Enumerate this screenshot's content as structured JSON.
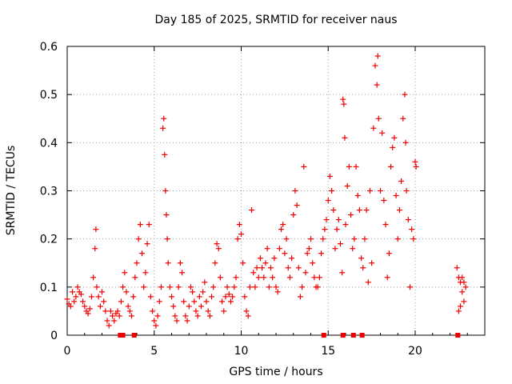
{
  "chart_data": {
    "type": "scatter",
    "title": "Day 185 of 2025, SRMTID for receiver naus",
    "xlabel": "GPS time / hours",
    "ylabel": "SRMTID / TECUs",
    "xlim": [
      0,
      24
    ],
    "ylim": [
      0,
      0.6
    ],
    "xticks": [
      0,
      5,
      10,
      15,
      20
    ],
    "yticks": [
      0,
      0.1,
      0.2,
      0.3,
      0.4,
      0.5,
      0.6
    ],
    "grid": true,
    "marker": "+",
    "color": "#ee0000",
    "series": [
      {
        "name": "SRMTID",
        "points": [
          [
            0.0,
            0.075
          ],
          [
            0.1,
            0.065
          ],
          [
            0.2,
            0.06
          ],
          [
            0.3,
            0.09
          ],
          [
            0.4,
            0.07
          ],
          [
            0.5,
            0.08
          ],
          [
            0.6,
            0.1
          ],
          [
            0.7,
            0.09
          ],
          [
            0.8,
            0.085
          ],
          [
            0.9,
            0.07
          ],
          [
            1.0,
            0.06
          ],
          [
            1.1,
            0.05
          ],
          [
            1.2,
            0.045
          ],
          [
            1.3,
            0.055
          ],
          [
            1.4,
            0.08
          ],
          [
            1.5,
            0.12
          ],
          [
            1.6,
            0.18
          ],
          [
            1.65,
            0.22
          ],
          [
            1.7,
            0.1
          ],
          [
            1.8,
            0.08
          ],
          [
            1.9,
            0.06
          ],
          [
            2.0,
            0.09
          ],
          [
            2.1,
            0.07
          ],
          [
            2.2,
            0.05
          ],
          [
            2.3,
            0.03
          ],
          [
            2.4,
            0.02
          ],
          [
            2.5,
            0.05
          ],
          [
            2.6,
            0.04
          ],
          [
            2.7,
            0.03
          ],
          [
            2.8,
            0.045
          ],
          [
            2.9,
            0.05
          ],
          [
            3.0,
            0.04
          ],
          [
            3.1,
            0.07
          ],
          [
            3.2,
            0.1
          ],
          [
            3.3,
            0.13
          ],
          [
            3.4,
            0.09
          ],
          [
            3.5,
            0.06
          ],
          [
            3.6,
            0.05
          ],
          [
            3.7,
            0.04
          ],
          [
            3.8,
            0.08
          ],
          [
            3.9,
            0.12
          ],
          [
            4.0,
            0.15
          ],
          [
            4.1,
            0.2
          ],
          [
            4.2,
            0.23
          ],
          [
            4.3,
            0.17
          ],
          [
            4.4,
            0.1
          ],
          [
            4.5,
            0.13
          ],
          [
            4.6,
            0.19
          ],
          [
            4.7,
            0.23
          ],
          [
            4.8,
            0.08
          ],
          [
            4.9,
            0.05
          ],
          [
            5.0,
            0.03
          ],
          [
            5.1,
            0.02
          ],
          [
            5.2,
            0.04
          ],
          [
            5.3,
            0.07
          ],
          [
            5.4,
            0.1
          ],
          [
            5.5,
            0.43
          ],
          [
            5.55,
            0.45
          ],
          [
            5.6,
            0.375
          ],
          [
            5.65,
            0.3
          ],
          [
            5.7,
            0.25
          ],
          [
            5.75,
            0.2
          ],
          [
            5.8,
            0.15
          ],
          [
            5.9,
            0.1
          ],
          [
            6.0,
            0.08
          ],
          [
            6.1,
            0.06
          ],
          [
            6.2,
            0.04
          ],
          [
            6.3,
            0.03
          ],
          [
            6.4,
            0.1
          ],
          [
            6.5,
            0.15
          ],
          [
            6.6,
            0.13
          ],
          [
            6.7,
            0.07
          ],
          [
            6.8,
            0.04
          ],
          [
            6.9,
            0.03
          ],
          [
            7.0,
            0.06
          ],
          [
            7.1,
            0.1
          ],
          [
            7.2,
            0.09
          ],
          [
            7.3,
            0.07
          ],
          [
            7.4,
            0.05
          ],
          [
            7.5,
            0.04
          ],
          [
            7.6,
            0.08
          ],
          [
            7.7,
            0.06
          ],
          [
            7.8,
            0.09
          ],
          [
            7.9,
            0.11
          ],
          [
            8.0,
            0.07
          ],
          [
            8.1,
            0.05
          ],
          [
            8.2,
            0.04
          ],
          [
            8.3,
            0.08
          ],
          [
            8.4,
            0.1
          ],
          [
            8.5,
            0.15
          ],
          [
            8.6,
            0.19
          ],
          [
            8.7,
            0.18
          ],
          [
            8.8,
            0.12
          ],
          [
            8.9,
            0.07
          ],
          [
            9.0,
            0.05
          ],
          [
            9.1,
            0.08
          ],
          [
            9.2,
            0.1
          ],
          [
            9.3,
            0.085
          ],
          [
            9.4,
            0.07
          ],
          [
            9.5,
            0.08
          ],
          [
            9.6,
            0.1
          ],
          [
            9.7,
            0.12
          ],
          [
            9.8,
            0.2
          ],
          [
            9.9,
            0.23
          ],
          [
            10.0,
            0.21
          ],
          [
            10.1,
            0.15
          ],
          [
            10.2,
            0.08
          ],
          [
            10.3,
            0.05
          ],
          [
            10.4,
            0.04
          ],
          [
            10.5,
            0.1
          ],
          [
            10.6,
            0.26
          ],
          [
            10.7,
            0.13
          ],
          [
            10.8,
            0.1
          ],
          [
            10.9,
            0.14
          ],
          [
            11.0,
            0.12
          ],
          [
            11.1,
            0.16
          ],
          [
            11.2,
            0.14
          ],
          [
            11.3,
            0.12
          ],
          [
            11.4,
            0.15
          ],
          [
            11.5,
            0.18
          ],
          [
            11.6,
            0.1
          ],
          [
            11.7,
            0.14
          ],
          [
            11.8,
            0.12
          ],
          [
            11.9,
            0.16
          ],
          [
            12.0,
            0.1
          ],
          [
            12.1,
            0.09
          ],
          [
            12.2,
            0.18
          ],
          [
            12.3,
            0.22
          ],
          [
            12.4,
            0.23
          ],
          [
            12.5,
            0.17
          ],
          [
            12.6,
            0.2
          ],
          [
            12.7,
            0.14
          ],
          [
            12.8,
            0.12
          ],
          [
            12.9,
            0.16
          ],
          [
            13.0,
            0.25
          ],
          [
            13.1,
            0.3
          ],
          [
            13.2,
            0.27
          ],
          [
            13.3,
            0.14
          ],
          [
            13.4,
            0.08
          ],
          [
            13.5,
            0.1
          ],
          [
            13.6,
            0.35
          ],
          [
            13.7,
            0.13
          ],
          [
            13.8,
            0.17
          ],
          [
            13.9,
            0.18
          ],
          [
            14.0,
            0.2
          ],
          [
            14.1,
            0.15
          ],
          [
            14.2,
            0.12
          ],
          [
            14.3,
            0.1
          ],
          [
            14.4,
            0.1
          ],
          [
            14.5,
            0.12
          ],
          [
            14.6,
            0.17
          ],
          [
            14.7,
            0.2
          ],
          [
            14.8,
            0.22
          ],
          [
            14.9,
            0.24
          ],
          [
            15.0,
            0.28
          ],
          [
            15.1,
            0.33
          ],
          [
            15.2,
            0.3
          ],
          [
            15.3,
            0.26
          ],
          [
            15.4,
            0.18
          ],
          [
            15.5,
            0.22
          ],
          [
            15.6,
            0.24
          ],
          [
            15.7,
            0.19
          ],
          [
            15.8,
            0.13
          ],
          [
            15.85,
            0.49
          ],
          [
            15.9,
            0.48
          ],
          [
            15.95,
            0.41
          ],
          [
            16.0,
            0.23
          ],
          [
            16.1,
            0.31
          ],
          [
            16.2,
            0.35
          ],
          [
            16.3,
            0.25
          ],
          [
            16.4,
            0.18
          ],
          [
            16.5,
            0.2
          ],
          [
            16.6,
            0.35
          ],
          [
            16.7,
            0.29
          ],
          [
            16.8,
            0.26
          ],
          [
            16.9,
            0.16
          ],
          [
            17.0,
            0.14
          ],
          [
            17.1,
            0.2
          ],
          [
            17.2,
            0.26
          ],
          [
            17.3,
            0.11
          ],
          [
            17.4,
            0.3
          ],
          [
            17.5,
            0.15
          ],
          [
            17.6,
            0.43
          ],
          [
            17.7,
            0.56
          ],
          [
            17.8,
            0.52
          ],
          [
            17.85,
            0.58
          ],
          [
            17.9,
            0.45
          ],
          [
            18.0,
            0.3
          ],
          [
            18.1,
            0.42
          ],
          [
            18.2,
            0.28
          ],
          [
            18.3,
            0.23
          ],
          [
            18.4,
            0.12
          ],
          [
            18.5,
            0.17
          ],
          [
            18.6,
            0.35
          ],
          [
            18.7,
            0.39
          ],
          [
            18.8,
            0.41
          ],
          [
            18.9,
            0.29
          ],
          [
            19.0,
            0.2
          ],
          [
            19.1,
            0.26
          ],
          [
            19.2,
            0.32
          ],
          [
            19.3,
            0.45
          ],
          [
            19.4,
            0.5
          ],
          [
            19.45,
            0.4
          ],
          [
            19.5,
            0.3
          ],
          [
            19.6,
            0.24
          ],
          [
            19.7,
            0.1
          ],
          [
            19.8,
            0.22
          ],
          [
            19.9,
            0.2
          ],
          [
            20.0,
            0.36
          ],
          [
            20.05,
            0.35
          ],
          [
            22.4,
            0.14
          ],
          [
            22.5,
            0.12
          ],
          [
            22.6,
            0.11
          ],
          [
            22.7,
            0.09
          ],
          [
            22.8,
            0.07
          ],
          [
            22.9,
            0.1
          ],
          [
            22.7,
            0.12
          ],
          [
            22.6,
            0.06
          ],
          [
            22.5,
            0.05
          ],
          [
            22.8,
            0.11
          ]
        ]
      }
    ],
    "zero_markers_x": [
      3.05,
      3.2,
      3.85,
      14.75,
      15.85,
      16.45,
      16.95,
      22.45
    ],
    "zero_markers_y": 0
  }
}
